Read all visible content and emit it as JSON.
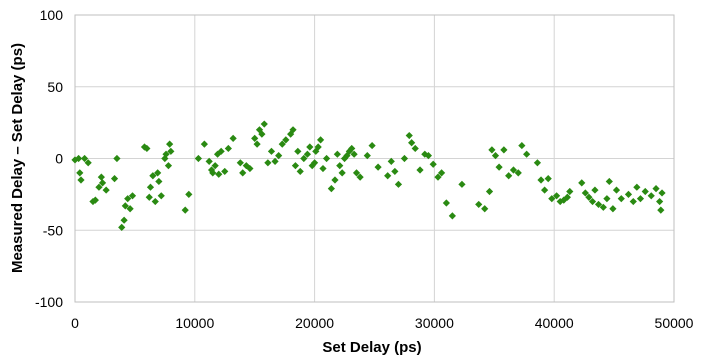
{
  "chart_data": {
    "type": "scatter",
    "title": "",
    "xlabel": "Set Delay (ps)",
    "ylabel": "Measured Delay – Set Delay (ps)",
    "xlim": [
      0,
      50000
    ],
    "ylim": [
      -100,
      100
    ],
    "xticks": [
      0,
      10000,
      20000,
      30000,
      40000,
      50000
    ],
    "yticks": [
      -100,
      -50,
      0,
      50,
      100
    ],
    "grid": true,
    "legend": "none",
    "marker": "diamond",
    "marker_color": "#2a8a12",
    "series": [
      {
        "x": [
          0,
          300,
          400,
          500,
          800,
          1100,
          1500,
          1700,
          2000,
          2200,
          2300,
          2600,
          3300,
          3500,
          3900,
          4100,
          4200,
          4400,
          4600,
          4800,
          5800,
          6000,
          6200,
          6300,
          6500,
          6700,
          6900,
          7000,
          7200,
          7500,
          7600,
          7800,
          7900,
          8000,
          9200,
          9500,
          10300,
          10800,
          11200,
          11400,
          11500,
          11700,
          11900,
          12000,
          12200,
          12500,
          12800,
          13200,
          13800,
          14000,
          14300,
          14600,
          15000,
          15200,
          15400,
          15600,
          15800,
          16100,
          16400,
          16700,
          17000,
          17300,
          17600,
          18000,
          18200,
          18400,
          18600,
          18800,
          19100,
          19400,
          19600,
          19800,
          20000,
          20100,
          20300,
          20500,
          20700,
          21000,
          21400,
          21700,
          21900,
          22100,
          22300,
          22500,
          22700,
          22900,
          23100,
          23300,
          23500,
          23800,
          24400,
          24800,
          25300,
          26100,
          26400,
          26700,
          27000,
          27500,
          27900,
          28100,
          28400,
          28800,
          29200,
          29500,
          29900,
          30300,
          30600,
          31000,
          31500,
          32300,
          33700,
          34200,
          34600,
          34800,
          35100,
          35400,
          35800,
          36200,
          36600,
          37000,
          37300,
          37700,
          38600,
          38900,
          39200,
          39500,
          39800,
          40200,
          40500,
          40800,
          41100,
          41300,
          42300,
          42600,
          42900,
          43200,
          43400,
          43700,
          44100,
          44400,
          44600,
          44900,
          45200,
          45600,
          46200,
          46600,
          46900,
          47200,
          47600,
          48100,
          48500,
          48800,
          48900,
          49000
        ],
        "y": [
          -1,
          0,
          -10,
          -15,
          0,
          -3,
          -30,
          -29,
          -20,
          -13,
          -17,
          -22,
          -14,
          0,
          -48,
          -43,
          -33,
          -28,
          -35,
          -26,
          8,
          7,
          -27,
          -20,
          -12,
          -30,
          -10,
          -16,
          -26,
          0,
          3,
          -5,
          10,
          5,
          -36,
          -25,
          0,
          10,
          -2,
          -8,
          -10,
          -5,
          3,
          -11,
          5,
          -9,
          7,
          14,
          -3,
          -10,
          -5,
          -7,
          14,
          10,
          20,
          17,
          24,
          -3,
          5,
          -2,
          2,
          10,
          13,
          17,
          20,
          -5,
          5,
          -9,
          0,
          3,
          8,
          -5,
          -3,
          5,
          8,
          13,
          -7,
          0,
          -21,
          -15,
          3,
          -5,
          -10,
          0,
          2,
          5,
          7,
          3,
          -10,
          -13,
          2,
          9,
          -6,
          -12,
          -2,
          -9,
          -18,
          0,
          16,
          11,
          7,
          -8,
          3,
          2,
          -4,
          -13,
          -10,
          -31,
          -40,
          -18,
          -32,
          -35,
          -23,
          6,
          2,
          -6,
          6,
          -12,
          -8,
          -10,
          9,
          3,
          -3,
          -15,
          -22,
          -14,
          -28,
          -26,
          -30,
          -29,
          -27,
          -23,
          -17,
          -24,
          -27,
          -30,
          -22,
          -32,
          -34,
          -28,
          -16,
          -35,
          -22,
          -28,
          -25,
          -30,
          -20,
          -28,
          -23,
          -26,
          -21,
          -30,
          -36,
          -24
        ]
      }
    ]
  }
}
